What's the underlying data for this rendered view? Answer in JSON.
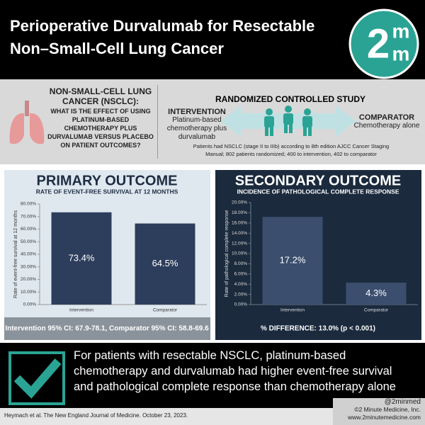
{
  "header": {
    "title_lines": [
      "Perioperative Durvalumab for Resectable",
      "Non–Small-Cell Lung Cancer"
    ]
  },
  "logo": {
    "digit": "2",
    "top": "m",
    "bottom": "m"
  },
  "question": {
    "heading_lines": [
      "NON-SMALL-CELL LUNG",
      "CANCER (NSCLC):"
    ],
    "lines": [
      "WHAT IS THE EFFECT OF USING",
      "PLATINUM-BASED",
      "CHEMOTHERAPY PLUS",
      "DURVALUMAB VERSUS PLACEBO",
      "ON PATIENT OUTCOMES?"
    ]
  },
  "study": {
    "heading": "RANDOMIZED CONTROLLED STUDY",
    "intervention_label": "INTERVENTION",
    "intervention_lines": [
      "Platinum-based",
      "chemotherapy plus",
      "durvalumab"
    ],
    "comparator_label": "COMPARATOR",
    "comparator_lines": [
      "Chemotherapy alone"
    ],
    "note_lines": [
      "Patients had NSCLC (stage II to IIIb) according to 8th edition AJCC Cancer Staging",
      "Manual; 802 patients randomized; 400 to intervention, 402 to comparator"
    ]
  },
  "chart_data": [
    {
      "type": "bar",
      "title": "PRIMARY OUTCOME",
      "subtitle": "RATE OF EVENT-FREE SURVIVAL AT 12 MONTHS",
      "y_label": "Rate of event-free survival at 12 months",
      "categories": [
        "Intervention",
        "Comparator"
      ],
      "values": [
        73.4,
        64.5
      ],
      "value_labels": [
        "73.4%",
        "64.5%"
      ],
      "color": "#2d3e5c",
      "ylim": [
        0,
        80
      ],
      "yticks": [
        {
          "value": 0,
          "label": "0.00%"
        },
        {
          "value": 10,
          "label": "10.00%"
        },
        {
          "value": 20,
          "label": "20.00%"
        },
        {
          "value": 30,
          "label": "30.00%"
        },
        {
          "value": 40,
          "label": "40.00%"
        },
        {
          "value": 50,
          "label": "50.00%"
        },
        {
          "value": 60,
          "label": "60.00%"
        },
        {
          "value": 70,
          "label": "70.00%"
        },
        {
          "value": 80,
          "label": "80.00%"
        }
      ],
      "footer": "Intervention 95% CI: 67.9-78.1, Comparator 95% CI: 58.8-69.6"
    },
    {
      "type": "bar",
      "title": "SECONDARY OUTCOME",
      "subtitle": "INCIDENCE OF PATHOLOGICAL COMPLETE RESPONSE",
      "y_label": "Rate of pathological complete response",
      "categories": [
        "Intervention",
        "Comparator"
      ],
      "values": [
        17.2,
        4.3
      ],
      "value_labels": [
        "17.2%",
        "4.3%"
      ],
      "color": "#3b4e6e",
      "ylim": [
        0,
        20
      ],
      "yticks": [
        {
          "value": 0,
          "label": "0.00%"
        },
        {
          "value": 2,
          "label": "2.00%"
        },
        {
          "value": 4,
          "label": "4.00%"
        },
        {
          "value": 6,
          "label": "6.00%"
        },
        {
          "value": 8,
          "label": "8.00%"
        },
        {
          "value": 10,
          "label": "10.00%"
        },
        {
          "value": 12,
          "label": "12.00%"
        },
        {
          "value": 14,
          "label": "14.00%"
        },
        {
          "value": 16,
          "label": "16.00%"
        },
        {
          "value": 18,
          "label": "18.00%"
        },
        {
          "value": 20,
          "label": "20.00%"
        }
      ],
      "footer": "% DIFFERENCE: 13.0% (p < 0.001)"
    }
  ],
  "conclusion": {
    "lines": [
      "For patients with resectable NSCLC, platinum-based",
      "chemotherapy and durvalumab had higher event-free survival",
      "and pathological complete response than chemotherapy alone"
    ]
  },
  "citation": "Heymach et al. The New England Journal of Medicine. October 23, 2023.",
  "credits": [
    "@2minmed",
    "©2 Minute Medicine, Inc.",
    "www.2minutemedicine.com"
  ]
}
